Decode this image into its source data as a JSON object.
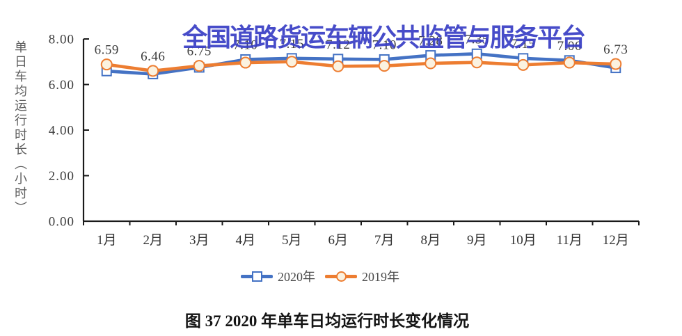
{
  "watermark": {
    "text": "全国道路货运车辆公共监管与服务平台",
    "color": "#3A3FC5"
  },
  "caption": {
    "text": "图 37 2020 年单车日均运行时长变化情况"
  },
  "chart_data": {
    "type": "line",
    "title": "图 37 2020 年单车日均运行时长变化情况",
    "xlabel": "",
    "ylabel": "单日车均运行时长（小时）",
    "categories": [
      "1月",
      "2月",
      "3月",
      "4月",
      "5月",
      "6月",
      "7月",
      "8月",
      "9月",
      "10月",
      "11月",
      "12月"
    ],
    "ylim": [
      0,
      8
    ],
    "ytick_labels": [
      "8.00",
      "6.00",
      "4.00",
      "2.00",
      "0.00"
    ],
    "grid": false,
    "legend_position": "bottom",
    "axis_color": "#1a1a1a",
    "text_color": "#3d3d3d",
    "series": [
      {
        "name": "2020年",
        "color": "#4472C4",
        "marker": "square",
        "marker_fill": "#ffffff",
        "show_labels": true,
        "values": [
          6.59,
          6.46,
          6.75,
          7.1,
          7.15,
          7.12,
          7.1,
          7.28,
          7.35,
          7.15,
          7.06,
          6.73
        ]
      },
      {
        "name": "2019年",
        "color": "#ED7D31",
        "marker": "circle",
        "marker_fill": "#FBF2E0",
        "show_labels": false,
        "values": [
          6.88,
          6.6,
          6.82,
          6.96,
          7.0,
          6.8,
          6.82,
          6.93,
          6.97,
          6.86,
          6.96,
          6.9
        ]
      }
    ]
  }
}
